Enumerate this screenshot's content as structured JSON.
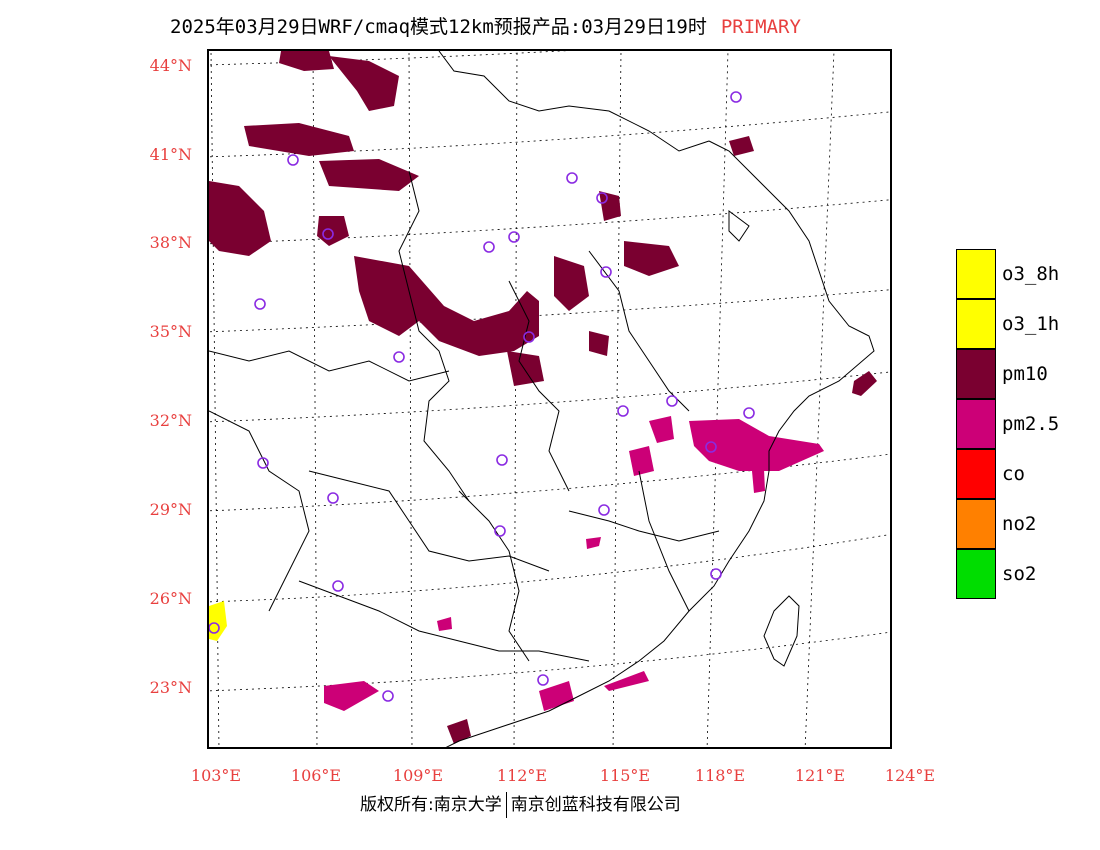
{
  "title": {
    "text": "2025年03月29日WRF/cmaq模式12km预报产品:03月29日19时",
    "tag": "PRIMARY",
    "tag_color": "#e8403f"
  },
  "axes": {
    "lat_labels": [
      "44°N",
      "41°N",
      "38°N",
      "35°N",
      "32°N",
      "29°N",
      "26°N",
      "23°N"
    ],
    "lon_labels": [
      "103°E",
      "106°E",
      "109°E",
      "112°E",
      "115°E",
      "118°E",
      "121°E",
      "124°E"
    ],
    "label_color": "#e8403f"
  },
  "legend": {
    "items": [
      {
        "label": "o3_8h",
        "color": "#ffff00"
      },
      {
        "label": "o3_1h",
        "color": "#ffff00"
      },
      {
        "label": "pm10",
        "color": "#7a0030"
      },
      {
        "label": "pm2.5",
        "color": "#cc0077"
      },
      {
        "label": "co",
        "color": "#ff0000"
      },
      {
        "label": "no2",
        "color": "#ff8000"
      },
      {
        "label": "so2",
        "color": "#00dd00"
      }
    ]
  },
  "footer": {
    "left": "版权所有:南京大学",
    "right": "南京创蓝科技有限公司"
  }
}
